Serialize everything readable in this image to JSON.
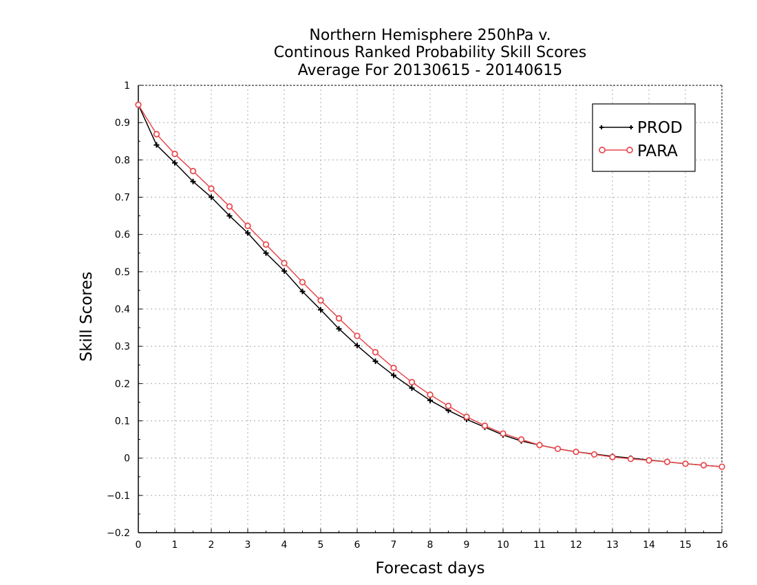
{
  "chart_data": {
    "type": "line",
    "title": [
      "Northern Hemisphere 250hPa v.",
      "Continous Ranked Probability Skill Scores",
      "Average For 20130615 - 20140615"
    ],
    "xlabel": "Forecast days",
    "ylabel": "Skill Scores",
    "xlim": [
      0,
      16
    ],
    "ylim": [
      -0.2,
      1
    ],
    "xticks": [
      0,
      1,
      2,
      3,
      4,
      5,
      6,
      7,
      8,
      9,
      10,
      11,
      12,
      13,
      14,
      15,
      16
    ],
    "xtick_labels": [
      "0",
      "1",
      "2",
      "3",
      "4",
      "5",
      "6",
      "7",
      "8",
      "9",
      "10",
      "11",
      "12",
      "13",
      "14",
      "15",
      "16"
    ],
    "yticks": [
      -0.2,
      -0.1,
      0,
      0.1,
      0.2,
      0.3,
      0.4,
      0.5,
      0.6,
      0.7,
      0.8,
      0.9,
      1
    ],
    "ytick_labels": [
      "−0.2",
      "−0.1",
      "0",
      "0.1",
      "0.2",
      "0.3",
      "0.4",
      "0.5",
      "0.6",
      "0.7",
      "0.8",
      "0.9",
      "1"
    ],
    "grid": true,
    "legend_position": "top-right",
    "x": [
      0,
      0.5,
      1,
      1.5,
      2,
      2.5,
      3,
      3.5,
      4,
      4.5,
      5,
      5.5,
      6,
      6.5,
      7,
      7.5,
      8,
      8.5,
      9,
      9.5,
      10,
      10.5,
      11,
      11.5,
      12,
      12.5,
      13,
      13.5,
      14,
      14.5,
      15,
      15.5,
      16
    ],
    "series": [
      {
        "name": "PROD",
        "color": "#000000",
        "marker": "plus",
        "values": [
          0.948,
          0.84,
          0.792,
          0.742,
          0.7,
          0.65,
          0.604,
          0.55,
          0.502,
          0.447,
          0.398,
          0.347,
          0.302,
          0.26,
          0.222,
          0.188,
          0.155,
          0.128,
          0.104,
          0.083,
          0.062,
          0.046,
          0.035,
          0.025,
          0.017,
          0.011,
          0.005,
          0.0,
          -0.005,
          -0.01,
          -0.015,
          -0.019,
          -0.023
        ]
      },
      {
        "name": "PARA",
        "color": "#e8474a",
        "marker": "circle",
        "values": [
          0.948,
          0.869,
          0.816,
          0.77,
          0.723,
          0.675,
          0.623,
          0.573,
          0.523,
          0.472,
          0.423,
          0.375,
          0.328,
          0.284,
          0.242,
          0.204,
          0.17,
          0.14,
          0.111,
          0.087,
          0.066,
          0.05,
          0.035,
          0.025,
          0.017,
          0.01,
          0.003,
          -0.002,
          -0.006,
          -0.01,
          -0.015,
          -0.019,
          -0.023
        ]
      }
    ]
  }
}
